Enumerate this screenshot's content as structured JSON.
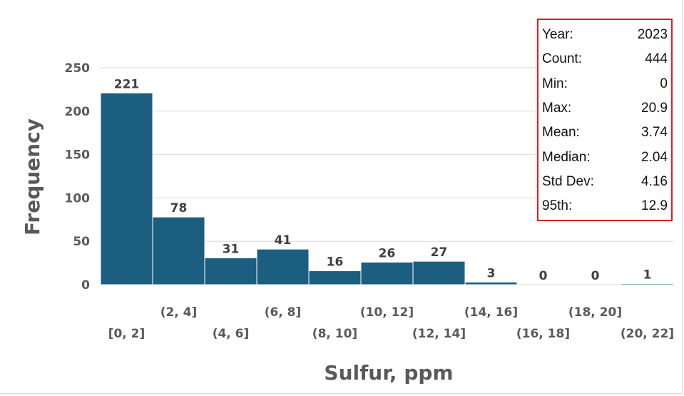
{
  "chart_data": {
    "type": "bar",
    "xlabel": "Sulfur, ppm",
    "ylabel": "Frequency",
    "ylim": [
      0,
      250
    ],
    "yticks": [
      0,
      50,
      100,
      150,
      200,
      250
    ],
    "grid": true,
    "categories": [
      "[0, 2]",
      "(2, 4]",
      "(4, 6]",
      "(6, 8]",
      "(8, 10]",
      "(10, 12]",
      "(12, 14]",
      "(14, 16]",
      "(16, 18]",
      "(18, 20]",
      "(20, 22]"
    ],
    "values": [
      221,
      78,
      31,
      41,
      16,
      26,
      27,
      3,
      0,
      0,
      1
    ],
    "colors": {
      "bar": "#1b5e7f"
    }
  },
  "stats": [
    {
      "label": "Year:",
      "value": "2023"
    },
    {
      "label": "Count:",
      "value": "444"
    },
    {
      "label": "Min:",
      "value": "0"
    },
    {
      "label": "Max:",
      "value": "20.9"
    },
    {
      "label": "Mean:",
      "value": "3.74"
    },
    {
      "label": "Median:",
      "value": "2.04"
    },
    {
      "label": "Std Dev:",
      "value": "4.16"
    },
    {
      "label": "95th:",
      "value": "12.9"
    }
  ]
}
